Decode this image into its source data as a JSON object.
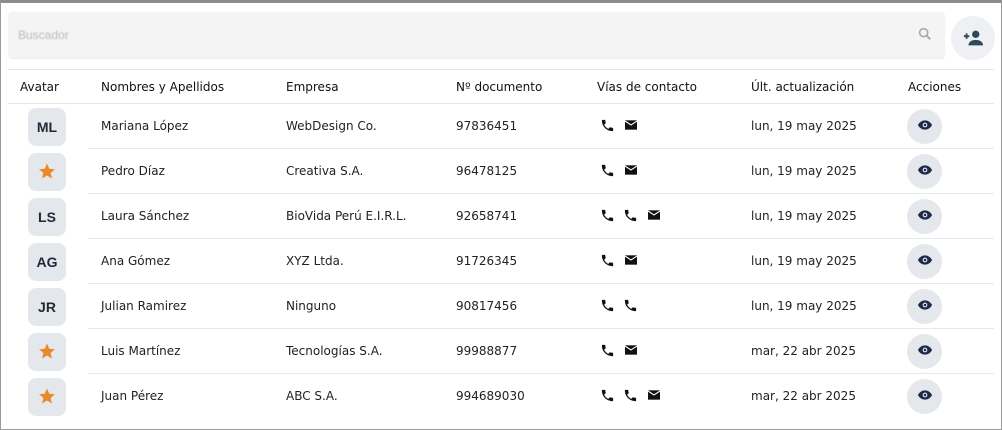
{
  "search": {
    "placeholder": "Buscador",
    "icon": "search-icon"
  },
  "add_button": {
    "icon": "add-person-icon"
  },
  "columns": [
    "Avatar",
    "Nombres y Apellidos",
    "Empresa",
    "Nº documento",
    "Vías de contacto",
    "Últ. actualización",
    "Acciones"
  ],
  "colors": {
    "avatar_bg": "#e4e7eb",
    "avatar_text": "#1e2a3a",
    "star": "#e8892b",
    "eye": "#1e2a4a"
  },
  "rows": [
    {
      "avatar": "ML",
      "name": "Mariana López",
      "company": "WebDesign Co.",
      "doc": "97836451",
      "contacts": [
        "phone",
        "email"
      ],
      "updated": "lun, 19 may 2025"
    },
    {
      "avatar": "star",
      "name": "Pedro Díaz",
      "company": "Creativa S.A.",
      "doc": "96478125",
      "contacts": [
        "phone",
        "email"
      ],
      "updated": "lun, 19 may 2025"
    },
    {
      "avatar": "LS",
      "name": "Laura Sánchez",
      "company": "BioVida Perú E.I.R.L.",
      "doc": "92658741",
      "contacts": [
        "phone",
        "phone",
        "email"
      ],
      "updated": "lun, 19 may 2025"
    },
    {
      "avatar": "AG",
      "name": "Ana Gómez",
      "company": "XYZ Ltda.",
      "doc": "91726345",
      "contacts": [
        "phone",
        "email"
      ],
      "updated": "lun, 19 may 2025"
    },
    {
      "avatar": "JR",
      "name": "Julian Ramirez",
      "company": "Ninguno",
      "doc": "90817456",
      "contacts": [
        "phone",
        "phone"
      ],
      "updated": "lun, 19 may 2025"
    },
    {
      "avatar": "star",
      "name": "Luis Martínez",
      "company": "Tecnologías S.A.",
      "doc": "99988877",
      "contacts": [
        "phone",
        "email"
      ],
      "updated": "mar, 22 abr 2025"
    },
    {
      "avatar": "star",
      "name": "Juan Pérez",
      "company": "ABC S.A.",
      "doc": "994689030",
      "contacts": [
        "phone",
        "phone",
        "email"
      ],
      "updated": "mar, 22 abr 2025"
    }
  ]
}
